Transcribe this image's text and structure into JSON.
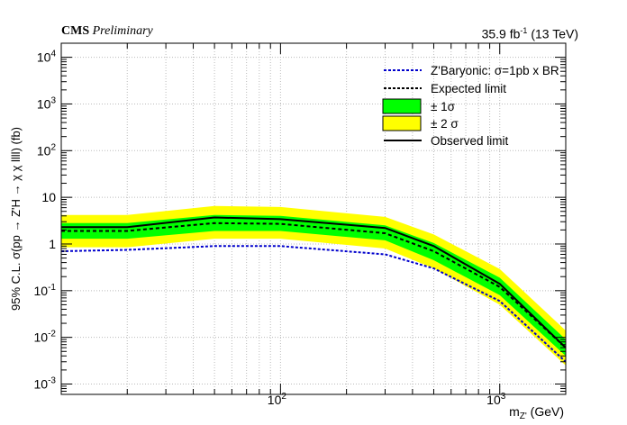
{
  "header": {
    "experiment": "CMS",
    "status": "Preliminary",
    "lumi_base": "35.9 fb",
    "lumi_exp": "-1",
    "energy": "(13 TeV)"
  },
  "chart_data": {
    "type": "line",
    "xlabel": "m_Z' (GeV)",
    "ylabel": "95% C.L. σ(pp → Z'H → χ χ llll) (fb)",
    "x_scale": "log",
    "y_scale": "log",
    "xlim": [
      10,
      2000
    ],
    "ylim": [
      0.0006,
      20000
    ],
    "grid": true,
    "legend_position": "top-right",
    "x_tick_labels": [
      "10^2",
      "10^3"
    ],
    "y_tick_labels": [
      "10^-3",
      "10^-2",
      "10^-1",
      "1",
      "10",
      "10^2",
      "10^3",
      "10^4"
    ],
    "legend": [
      {
        "label": "Z'Baryonic: σ=1pb x BR",
        "style": "dotted-blue"
      },
      {
        "label": "Expected limit",
        "style": "dashed-black"
      },
      {
        "label": "± 1σ",
        "style": "band-green"
      },
      {
        "label": "± 2 σ",
        "style": "band-yellow"
      },
      {
        "label": "Observed limit",
        "style": "solid-black"
      }
    ],
    "x": [
      10,
      20,
      50,
      100,
      300,
      500,
      1000,
      2000
    ],
    "series": [
      {
        "name": "Z'Baryonic: σ=1pb x BR",
        "values": [
          0.7,
          0.75,
          0.9,
          0.9,
          0.6,
          0.3,
          0.06,
          0.003
        ]
      },
      {
        "name": "Expected limit",
        "values": [
          1.9,
          1.9,
          2.8,
          2.7,
          1.7,
          0.7,
          0.12,
          0.006
        ]
      },
      {
        "name": "Observed limit",
        "values": [
          2.3,
          2.3,
          3.7,
          3.4,
          2.2,
          0.9,
          0.14,
          0.006
        ]
      }
    ],
    "band_1sigma": {
      "lower": [
        1.3,
        1.3,
        1.9,
        1.9,
        1.2,
        0.45,
        0.08,
        0.004
      ],
      "upper": [
        2.8,
        2.8,
        4.2,
        4.0,
        2.5,
        1.05,
        0.19,
        0.009
      ]
    },
    "band_2sigma": {
      "lower": [
        0.85,
        0.85,
        1.3,
        1.3,
        0.8,
        0.3,
        0.05,
        0.0025
      ],
      "upper": [
        4.2,
        4.2,
        6.5,
        6.2,
        3.8,
        1.6,
        0.29,
        0.014
      ]
    },
    "colors": {
      "band_1sigma": "#00ff00",
      "band_2sigma": "#ffff00",
      "baryonic": "#0000cc",
      "expected": "#000000",
      "observed": "#000000"
    }
  }
}
